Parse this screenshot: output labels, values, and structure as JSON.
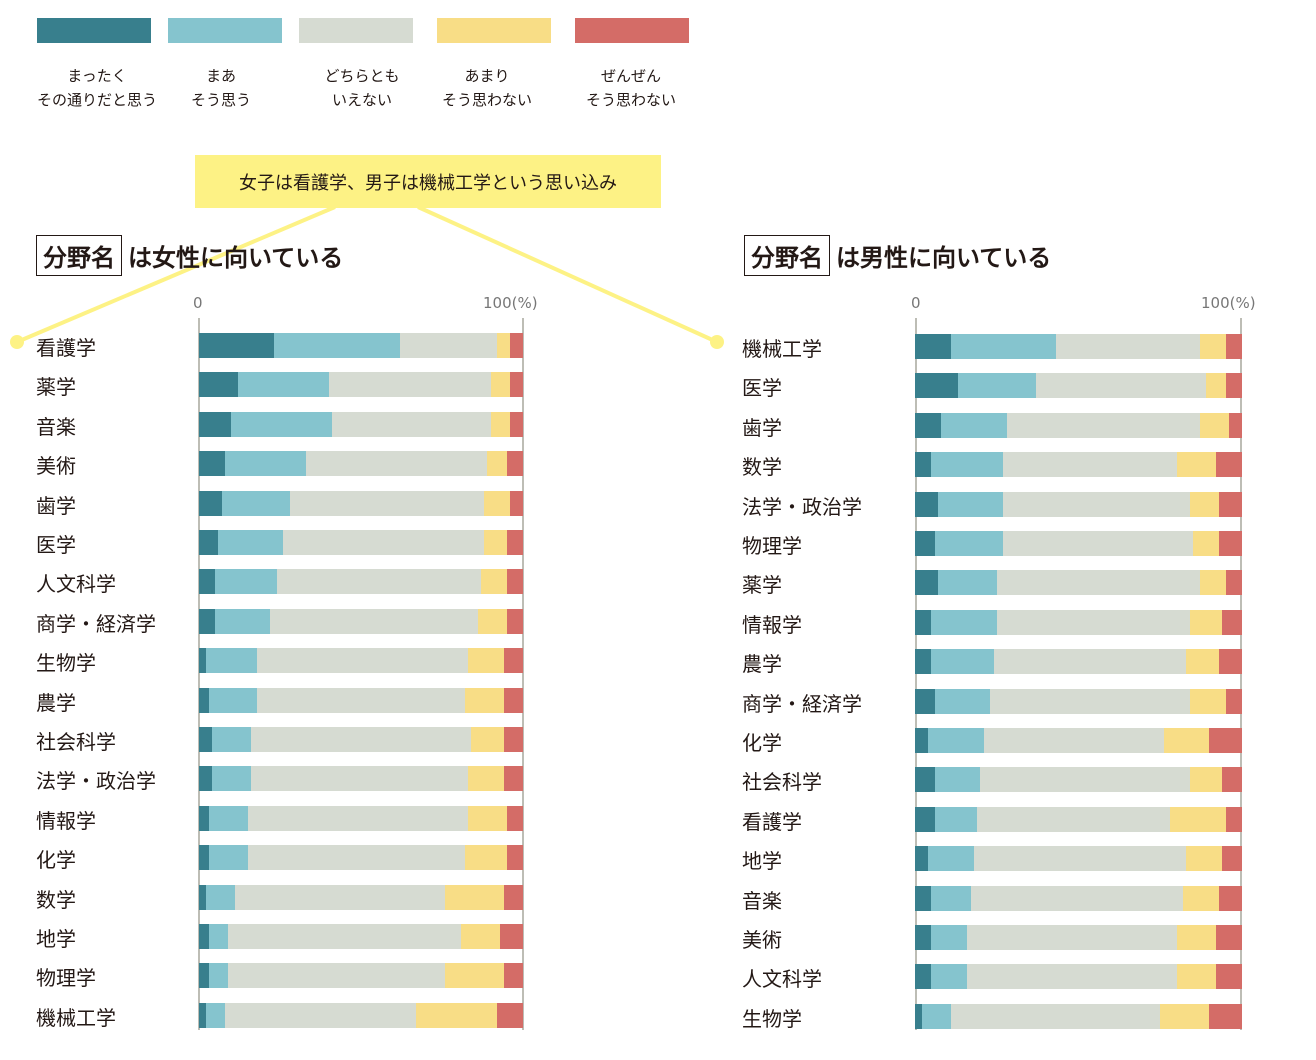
{
  "legend": [
    {
      "key": "strongly_agree",
      "label": "まったく\nその通りだと思う",
      "color": "#387f8d"
    },
    {
      "key": "agree",
      "label": "まあ\nそう思う",
      "color": "#85c4ce"
    },
    {
      "key": "neutral",
      "label": "どちらとも\nいえない",
      "color": "#d6dbd2"
    },
    {
      "key": "disagree",
      "label": "あまり\nそう思わない",
      "color": "#f8dd86"
    },
    {
      "key": "strongly_disagree",
      "label": "ぜんぜん\nそう思わない",
      "color": "#d46c67"
    }
  ],
  "callout": {
    "text": "女子は看護学、男子は機械工学という思い込み",
    "color": "#fdf285"
  },
  "chart_data": [
    {
      "type": "bar",
      "orientation": "horizontal",
      "stacked": true,
      "title_boxed": "分野名",
      "title_rest": "は女性に向いている",
      "xlim": [
        0,
        100
      ],
      "xticks": [
        "0",
        "100(%)"
      ],
      "series_names": [
        "まったくその通りだと思う",
        "まあそう思う",
        "どちらともいえない",
        "あまりそう思わない",
        "ぜんぜんそう思わない"
      ],
      "categories": [
        "看護学",
        "薬学",
        "音楽",
        "美術",
        "歯学",
        "医学",
        "人文科学",
        "商学・経済学",
        "生物学",
        "農学",
        "社会科学",
        "法学・政治学",
        "情報学",
        "化学",
        "数学",
        "地学",
        "物理学",
        "機械工学"
      ],
      "values": [
        [
          23,
          39,
          30,
          4,
          4
        ],
        [
          12,
          28,
          50,
          6,
          4
        ],
        [
          10,
          31,
          49,
          6,
          4
        ],
        [
          8,
          25,
          56,
          6,
          5
        ],
        [
          7,
          21,
          60,
          8,
          4
        ],
        [
          6,
          20,
          62,
          7,
          5
        ],
        [
          5,
          19,
          63,
          8,
          5
        ],
        [
          5,
          17,
          64,
          9,
          5
        ],
        [
          2,
          16,
          65,
          11,
          6
        ],
        [
          3,
          15,
          64,
          12,
          6
        ],
        [
          4,
          12,
          68,
          10,
          6
        ],
        [
          4,
          12,
          67,
          11,
          6
        ],
        [
          3,
          12,
          68,
          12,
          5
        ],
        [
          3,
          12,
          67,
          13,
          5
        ],
        [
          2,
          9,
          65,
          18,
          6
        ],
        [
          3,
          6,
          72,
          12,
          7
        ],
        [
          3,
          6,
          67,
          18,
          6
        ],
        [
          2,
          6,
          59,
          25,
          8
        ]
      ]
    },
    {
      "type": "bar",
      "orientation": "horizontal",
      "stacked": true,
      "title_boxed": "分野名",
      "title_rest": "は男性に向いている",
      "xlim": [
        0,
        100
      ],
      "xticks": [
        "0",
        "100(%)"
      ],
      "series_names": [
        "まったくその通りだと思う",
        "まあそう思う",
        "どちらともいえない",
        "あまりそう思わない",
        "ぜんぜんそう思わない"
      ],
      "categories": [
        "機械工学",
        "医学",
        "歯学",
        "数学",
        "法学・政治学",
        "物理学",
        "薬学",
        "情報学",
        "農学",
        "商学・経済学",
        "化学",
        "社会科学",
        "看護学",
        "地学",
        "音楽",
        "美術",
        "人文科学",
        "生物学"
      ],
      "values": [
        [
          11,
          32,
          44,
          8,
          5
        ],
        [
          13,
          24,
          52,
          6,
          5
        ],
        [
          8,
          20,
          59,
          9,
          4
        ],
        [
          5,
          22,
          53,
          12,
          8
        ],
        [
          7,
          20,
          57,
          9,
          7
        ],
        [
          6,
          21,
          58,
          8,
          7
        ],
        [
          7,
          18,
          62,
          8,
          5
        ],
        [
          5,
          20,
          59,
          10,
          6
        ],
        [
          5,
          19,
          59,
          10,
          7
        ],
        [
          6,
          17,
          61,
          11,
          5
        ],
        [
          4,
          17,
          55,
          14,
          10
        ],
        [
          6,
          14,
          64,
          10,
          6
        ],
        [
          6,
          13,
          59,
          17,
          5
        ],
        [
          4,
          14,
          65,
          11,
          6
        ],
        [
          5,
          12,
          65,
          11,
          7
        ],
        [
          5,
          11,
          64,
          12,
          8
        ],
        [
          5,
          11,
          64,
          12,
          8
        ],
        [
          2,
          9,
          64,
          15,
          10
        ]
      ]
    }
  ]
}
